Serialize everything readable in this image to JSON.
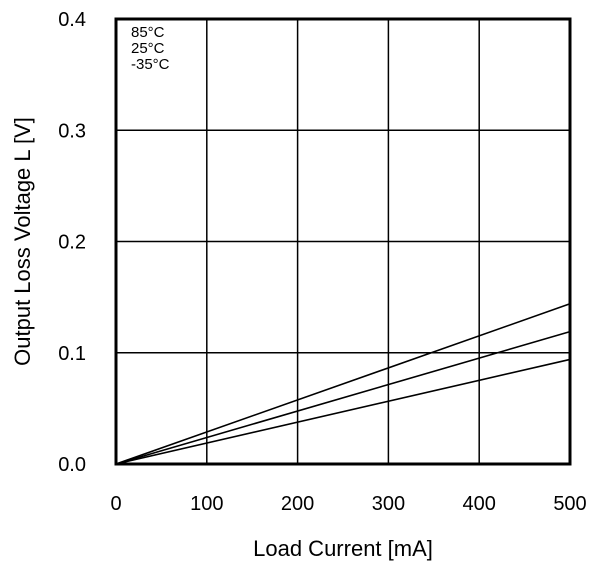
{
  "chart_data": {
    "type": "line",
    "title": "",
    "xlabel": "Load Current [mA]",
    "ylabel": "Output Loss Voltage L [V]",
    "xlim": [
      0,
      500
    ],
    "ylim": [
      0,
      0.4
    ],
    "x_ticks": [
      0,
      100,
      200,
      300,
      400,
      500
    ],
    "x_tick_labels": [
      "0",
      "100",
      "200",
      "300",
      "400",
      "500"
    ],
    "y_ticks": [
      0,
      0.1,
      0.2,
      0.3,
      0.4
    ],
    "y_tick_labels": [
      "0.0",
      "0.1",
      "0.2",
      "0.3",
      "0.4"
    ],
    "grid": true,
    "legend_position": "top-left",
    "legend_labels": [
      "85°C",
      "25°C",
      "-35°C"
    ],
    "series": [
      {
        "name": "85°C",
        "x": [
          0,
          500
        ],
        "y": [
          0,
          0.144
        ]
      },
      {
        "name": "25°C",
        "x": [
          0,
          500
        ],
        "y": [
          0,
          0.119
        ]
      },
      {
        "name": "-35°C",
        "x": [
          0,
          500
        ],
        "y": [
          0,
          0.094
        ]
      }
    ]
  }
}
